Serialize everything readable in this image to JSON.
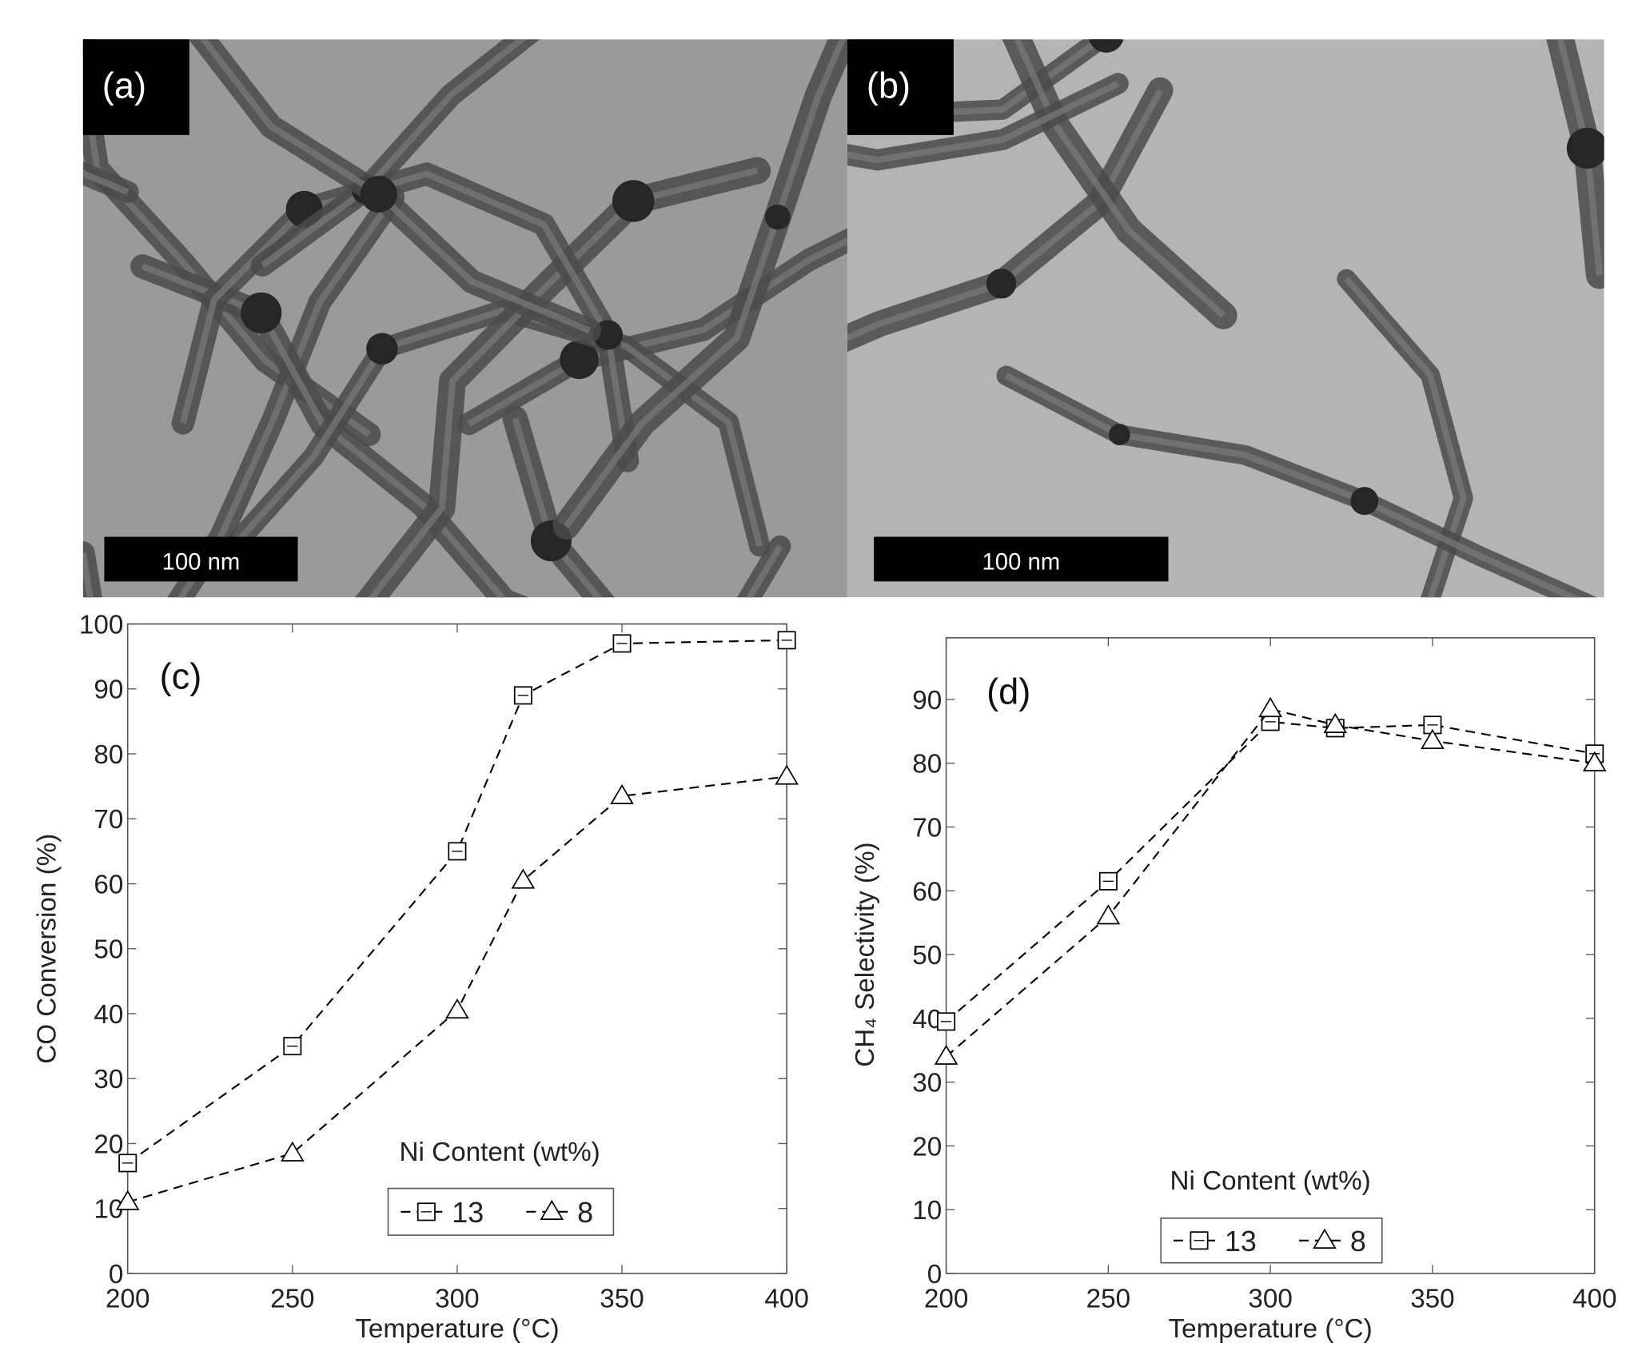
{
  "images": [
    {
      "label": "(a)",
      "scale_bar": "100 nm"
    },
    {
      "label": "(b)",
      "scale_bar": "100 nm"
    }
  ],
  "chart_data": [
    {
      "type": "line",
      "annotation": "(c)",
      "xlabel": "Temperature (°C)",
      "ylabel": "CO Conversion (%)",
      "x": [
        200,
        250,
        300,
        320,
        350,
        400
      ],
      "xlim": [
        200,
        400
      ],
      "xticks": [
        200,
        250,
        300,
        350,
        400
      ],
      "ylim": [
        0,
        100
      ],
      "yticks": [
        0,
        10,
        20,
        30,
        40,
        50,
        60,
        70,
        80,
        90,
        100
      ],
      "legend_title": "Ni Content (wt%)",
      "series": [
        {
          "name": "13",
          "color": "#000000",
          "marker": "square",
          "values": [
            17,
            35,
            65,
            89,
            97,
            97.5
          ]
        },
        {
          "name": "8",
          "color": "#000000",
          "marker": "triangle",
          "values": [
            11,
            18.5,
            40.5,
            60.5,
            73.5,
            76.5
          ]
        }
      ]
    },
    {
      "type": "line",
      "annotation": "(d)",
      "xlabel": "Temperature (°C)",
      "ylabel": "CH₄ Selectivity (%)",
      "x": [
        200,
        250,
        300,
        320,
        350,
        400
      ],
      "xlim": [
        200,
        400
      ],
      "xticks": [
        200,
        250,
        300,
        350,
        400
      ],
      "ylim": [
        0,
        100
      ],
      "yticks": [
        0,
        10,
        20,
        30,
        40,
        50,
        60,
        70,
        80,
        90
      ],
      "legend_title": "Ni Content (wt%)",
      "series": [
        {
          "name": "13",
          "color": "#000000",
          "marker": "square",
          "values": [
            39.5,
            61.5,
            86.5,
            85.5,
            86,
            81.5
          ]
        },
        {
          "name": "8",
          "color": "#000000",
          "marker": "triangle",
          "values": [
            34,
            56,
            88.5,
            86,
            83.5,
            80
          ]
        }
      ]
    }
  ]
}
